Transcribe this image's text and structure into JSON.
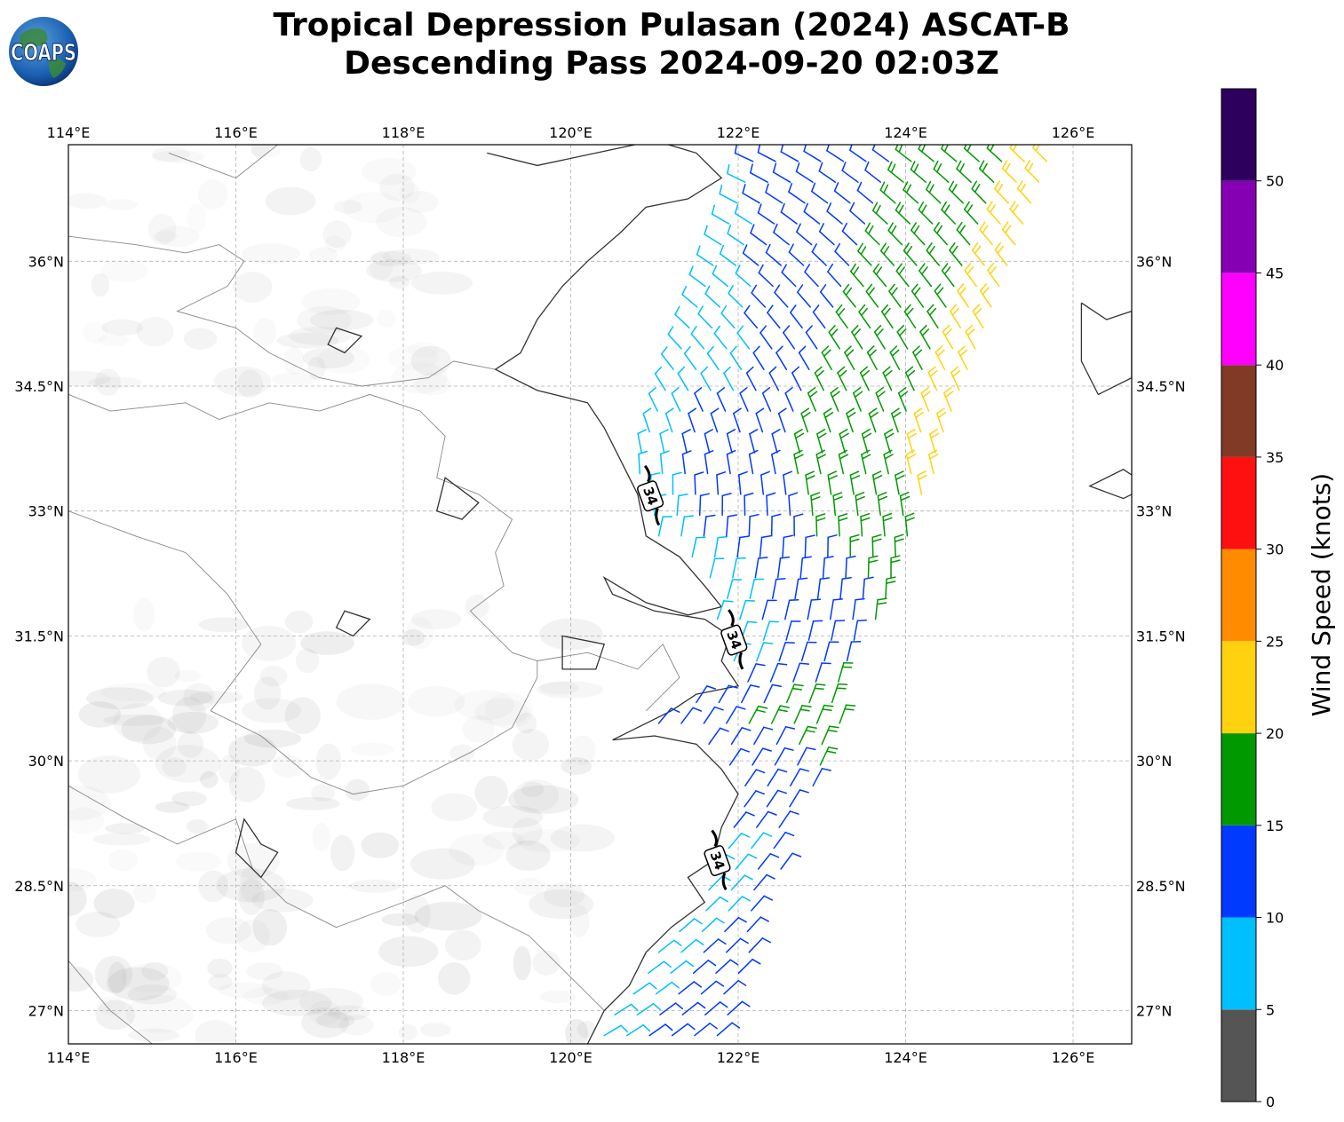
{
  "header": {
    "title_line1": "Tropical Depression Pulasan (2024) ASCAT-B",
    "title_line2": "Descending Pass 2024-09-20 02:03Z",
    "logo_text": "COAPS"
  },
  "map": {
    "lon_range": [
      114.0,
      126.7
    ],
    "lat_range": [
      26.6,
      37.4
    ],
    "lon_ticks": [
      114,
      116,
      118,
      120,
      122,
      124,
      126
    ],
    "lon_tick_labels": [
      "114°E",
      "116°E",
      "118°E",
      "120°E",
      "122°E",
      "124°E",
      "126°E"
    ],
    "lat_ticks": [
      27.0,
      28.5,
      30.0,
      31.5,
      33.0,
      34.5,
      36.0
    ],
    "lat_tick_labels": [
      "27°N",
      "28.5°N",
      "30°N",
      "31.5°N",
      "33°N",
      "34.5°N",
      "36°N"
    ],
    "grid": true,
    "contour_labels": [
      {
        "text": "34",
        "lon": 120.95,
        "lat": 33.18
      },
      {
        "text": "34",
        "lon": 121.95,
        "lat": 31.45
      },
      {
        "text": "34",
        "lon": 121.75,
        "lat": 28.8
      }
    ],
    "coastline": [
      [
        119.0,
        37.3
      ],
      [
        119.6,
        37.15
      ],
      [
        120.3,
        37.3
      ],
      [
        121.0,
        37.45
      ],
      [
        121.5,
        37.3
      ],
      [
        121.8,
        37.0
      ],
      [
        121.4,
        36.75
      ],
      [
        120.9,
        36.65
      ],
      [
        120.6,
        36.35
      ],
      [
        120.2,
        36.0
      ],
      [
        119.9,
        35.7
      ],
      [
        119.6,
        35.3
      ],
      [
        119.4,
        34.9
      ],
      [
        119.1,
        34.7
      ],
      [
        119.6,
        34.45
      ],
      [
        120.2,
        34.3
      ],
      [
        120.4,
        34.0
      ],
      [
        120.6,
        33.6
      ],
      [
        120.8,
        33.2
      ],
      [
        120.9,
        32.7
      ],
      [
        121.3,
        32.45
      ],
      [
        121.6,
        32.1
      ],
      [
        121.8,
        31.85
      ],
      [
        121.4,
        31.75
      ],
      [
        120.9,
        31.9
      ],
      [
        120.4,
        32.2
      ],
      [
        120.5,
        32.0
      ],
      [
        121.0,
        31.8
      ],
      [
        121.6,
        31.7
      ],
      [
        121.9,
        31.5
      ],
      [
        121.8,
        31.2
      ],
      [
        122.0,
        30.9
      ],
      [
        121.5,
        30.8
      ],
      [
        121.2,
        30.6
      ],
      [
        120.8,
        30.4
      ],
      [
        120.5,
        30.25
      ],
      [
        121.0,
        30.3
      ],
      [
        121.5,
        30.2
      ],
      [
        121.8,
        29.9
      ],
      [
        122.0,
        29.6
      ],
      [
        121.8,
        29.2
      ],
      [
        121.7,
        28.8
      ],
      [
        121.4,
        28.6
      ],
      [
        121.6,
        28.3
      ],
      [
        121.2,
        28.0
      ],
      [
        120.9,
        27.7
      ],
      [
        120.7,
        27.3
      ],
      [
        120.4,
        27.0
      ],
      [
        120.2,
        26.6
      ]
    ],
    "borders": [
      [
        [
          114.0,
          36.3
        ],
        [
          114.8,
          36.2
        ],
        [
          115.4,
          36.1
        ],
        [
          115.8,
          36.2
        ],
        [
          116.1,
          36.0
        ],
        [
          115.9,
          35.7
        ],
        [
          115.3,
          35.4
        ],
        [
          116.0,
          35.2
        ],
        [
          116.4,
          34.9
        ],
        [
          117.0,
          34.6
        ],
        [
          117.5,
          34.5
        ],
        [
          118.3,
          34.6
        ],
        [
          118.6,
          34.8
        ],
        [
          119.1,
          34.7
        ]
      ],
      [
        [
          115.2,
          37.3
        ],
        [
          116.0,
          37.0
        ],
        [
          116.5,
          37.4
        ]
      ],
      [
        [
          114.0,
          34.4
        ],
        [
          114.5,
          34.2
        ],
        [
          115.4,
          34.3
        ],
        [
          115.8,
          34.1
        ],
        [
          116.4,
          34.3
        ],
        [
          117.0,
          34.2
        ],
        [
          117.6,
          34.4
        ],
        [
          118.2,
          34.2
        ],
        [
          118.5,
          33.9
        ],
        [
          118.4,
          33.4
        ],
        [
          118.9,
          33.2
        ],
        [
          119.3,
          32.9
        ],
        [
          119.1,
          32.5
        ],
        [
          119.2,
          32.1
        ],
        [
          118.8,
          31.8
        ],
        [
          119.3,
          31.3
        ],
        [
          119.6,
          31.2
        ],
        [
          120.2,
          31.3
        ],
        [
          120.8,
          31.1
        ],
        [
          121.1,
          31.4
        ],
        [
          121.3,
          31.0
        ],
        [
          120.9,
          30.6
        ]
      ],
      [
        [
          114.0,
          33.0
        ],
        [
          114.8,
          32.7
        ],
        [
          115.4,
          32.5
        ],
        [
          115.9,
          32.0
        ],
        [
          116.3,
          31.4
        ],
        [
          116.0,
          31.0
        ],
        [
          115.7,
          30.6
        ],
        [
          116.3,
          30.3
        ],
        [
          116.9,
          29.8
        ],
        [
          117.4,
          29.6
        ],
        [
          118.0,
          29.7
        ],
        [
          118.4,
          29.9
        ],
        [
          118.8,
          30.1
        ],
        [
          119.3,
          30.4
        ],
        [
          119.6,
          31.0
        ],
        [
          119.6,
          31.2
        ]
      ],
      [
        [
          114.0,
          29.7
        ],
        [
          114.7,
          29.3
        ],
        [
          115.3,
          29.0
        ],
        [
          116.0,
          29.3
        ],
        [
          116.2,
          28.7
        ],
        [
          116.6,
          28.3
        ],
        [
          117.2,
          28.0
        ],
        [
          118.0,
          28.3
        ],
        [
          118.5,
          28.5
        ],
        [
          118.9,
          28.2
        ],
        [
          119.5,
          27.9
        ],
        [
          119.9,
          27.5
        ],
        [
          120.2,
          27.2
        ],
        [
          120.4,
          27.0
        ]
      ],
      [
        [
          114.0,
          27.6
        ],
        [
          114.5,
          27.0
        ],
        [
          115.0,
          26.6
        ]
      ]
    ],
    "lakes": [
      [
        [
          116.1,
          29.3
        ],
        [
          116.3,
          29.0
        ],
        [
          116.5,
          28.9
        ],
        [
          116.3,
          28.6
        ],
        [
          116.0,
          28.9
        ],
        [
          116.1,
          29.3
        ]
      ],
      [
        [
          117.3,
          31.8
        ],
        [
          117.6,
          31.7
        ],
        [
          117.4,
          31.5
        ],
        [
          117.2,
          31.6
        ],
        [
          117.3,
          31.8
        ]
      ],
      [
        [
          119.9,
          31.5
        ],
        [
          120.4,
          31.4
        ],
        [
          120.3,
          31.1
        ],
        [
          119.9,
          31.1
        ],
        [
          119.9,
          31.5
        ]
      ],
      [
        [
          118.5,
          33.4
        ],
        [
          118.9,
          33.1
        ],
        [
          118.7,
          32.9
        ],
        [
          118.4,
          33.0
        ],
        [
          118.5,
          33.4
        ]
      ],
      [
        [
          117.2,
          35.2
        ],
        [
          117.5,
          35.1
        ],
        [
          117.3,
          34.9
        ],
        [
          117.1,
          35.0
        ],
        [
          117.2,
          35.2
        ]
      ]
    ]
  },
  "colorbar": {
    "label": "Wind Speed (knots)",
    "bands": [
      {
        "from": 0,
        "to": 5,
        "color": "#555555"
      },
      {
        "from": 5,
        "to": 10,
        "color": "#00bfff"
      },
      {
        "from": 10,
        "to": 15,
        "color": "#0039ff"
      },
      {
        "from": 15,
        "to": 20,
        "color": "#009900"
      },
      {
        "from": 20,
        "to": 25,
        "color": "#ffd20f"
      },
      {
        "from": 25,
        "to": 30,
        "color": "#ff8c00"
      },
      {
        "from": 30,
        "to": 35,
        "color": "#ff1010"
      },
      {
        "from": 35,
        "to": 40,
        "color": "#803a26"
      },
      {
        "from": 40,
        "to": 45,
        "color": "#ff00ff"
      },
      {
        "from": 45,
        "to": 50,
        "color": "#8600b3"
      },
      {
        "from": 50,
        "to": 55,
        "color": "#2d005e"
      }
    ],
    "ticks": [
      0,
      5,
      10,
      15,
      20,
      25,
      30,
      35,
      40,
      45,
      50
    ],
    "tick_labels": [
      "0",
      "5",
      "10",
      "15",
      "20",
      "25",
      "30",
      "35",
      "40",
      "45",
      "50"
    ]
  }
}
